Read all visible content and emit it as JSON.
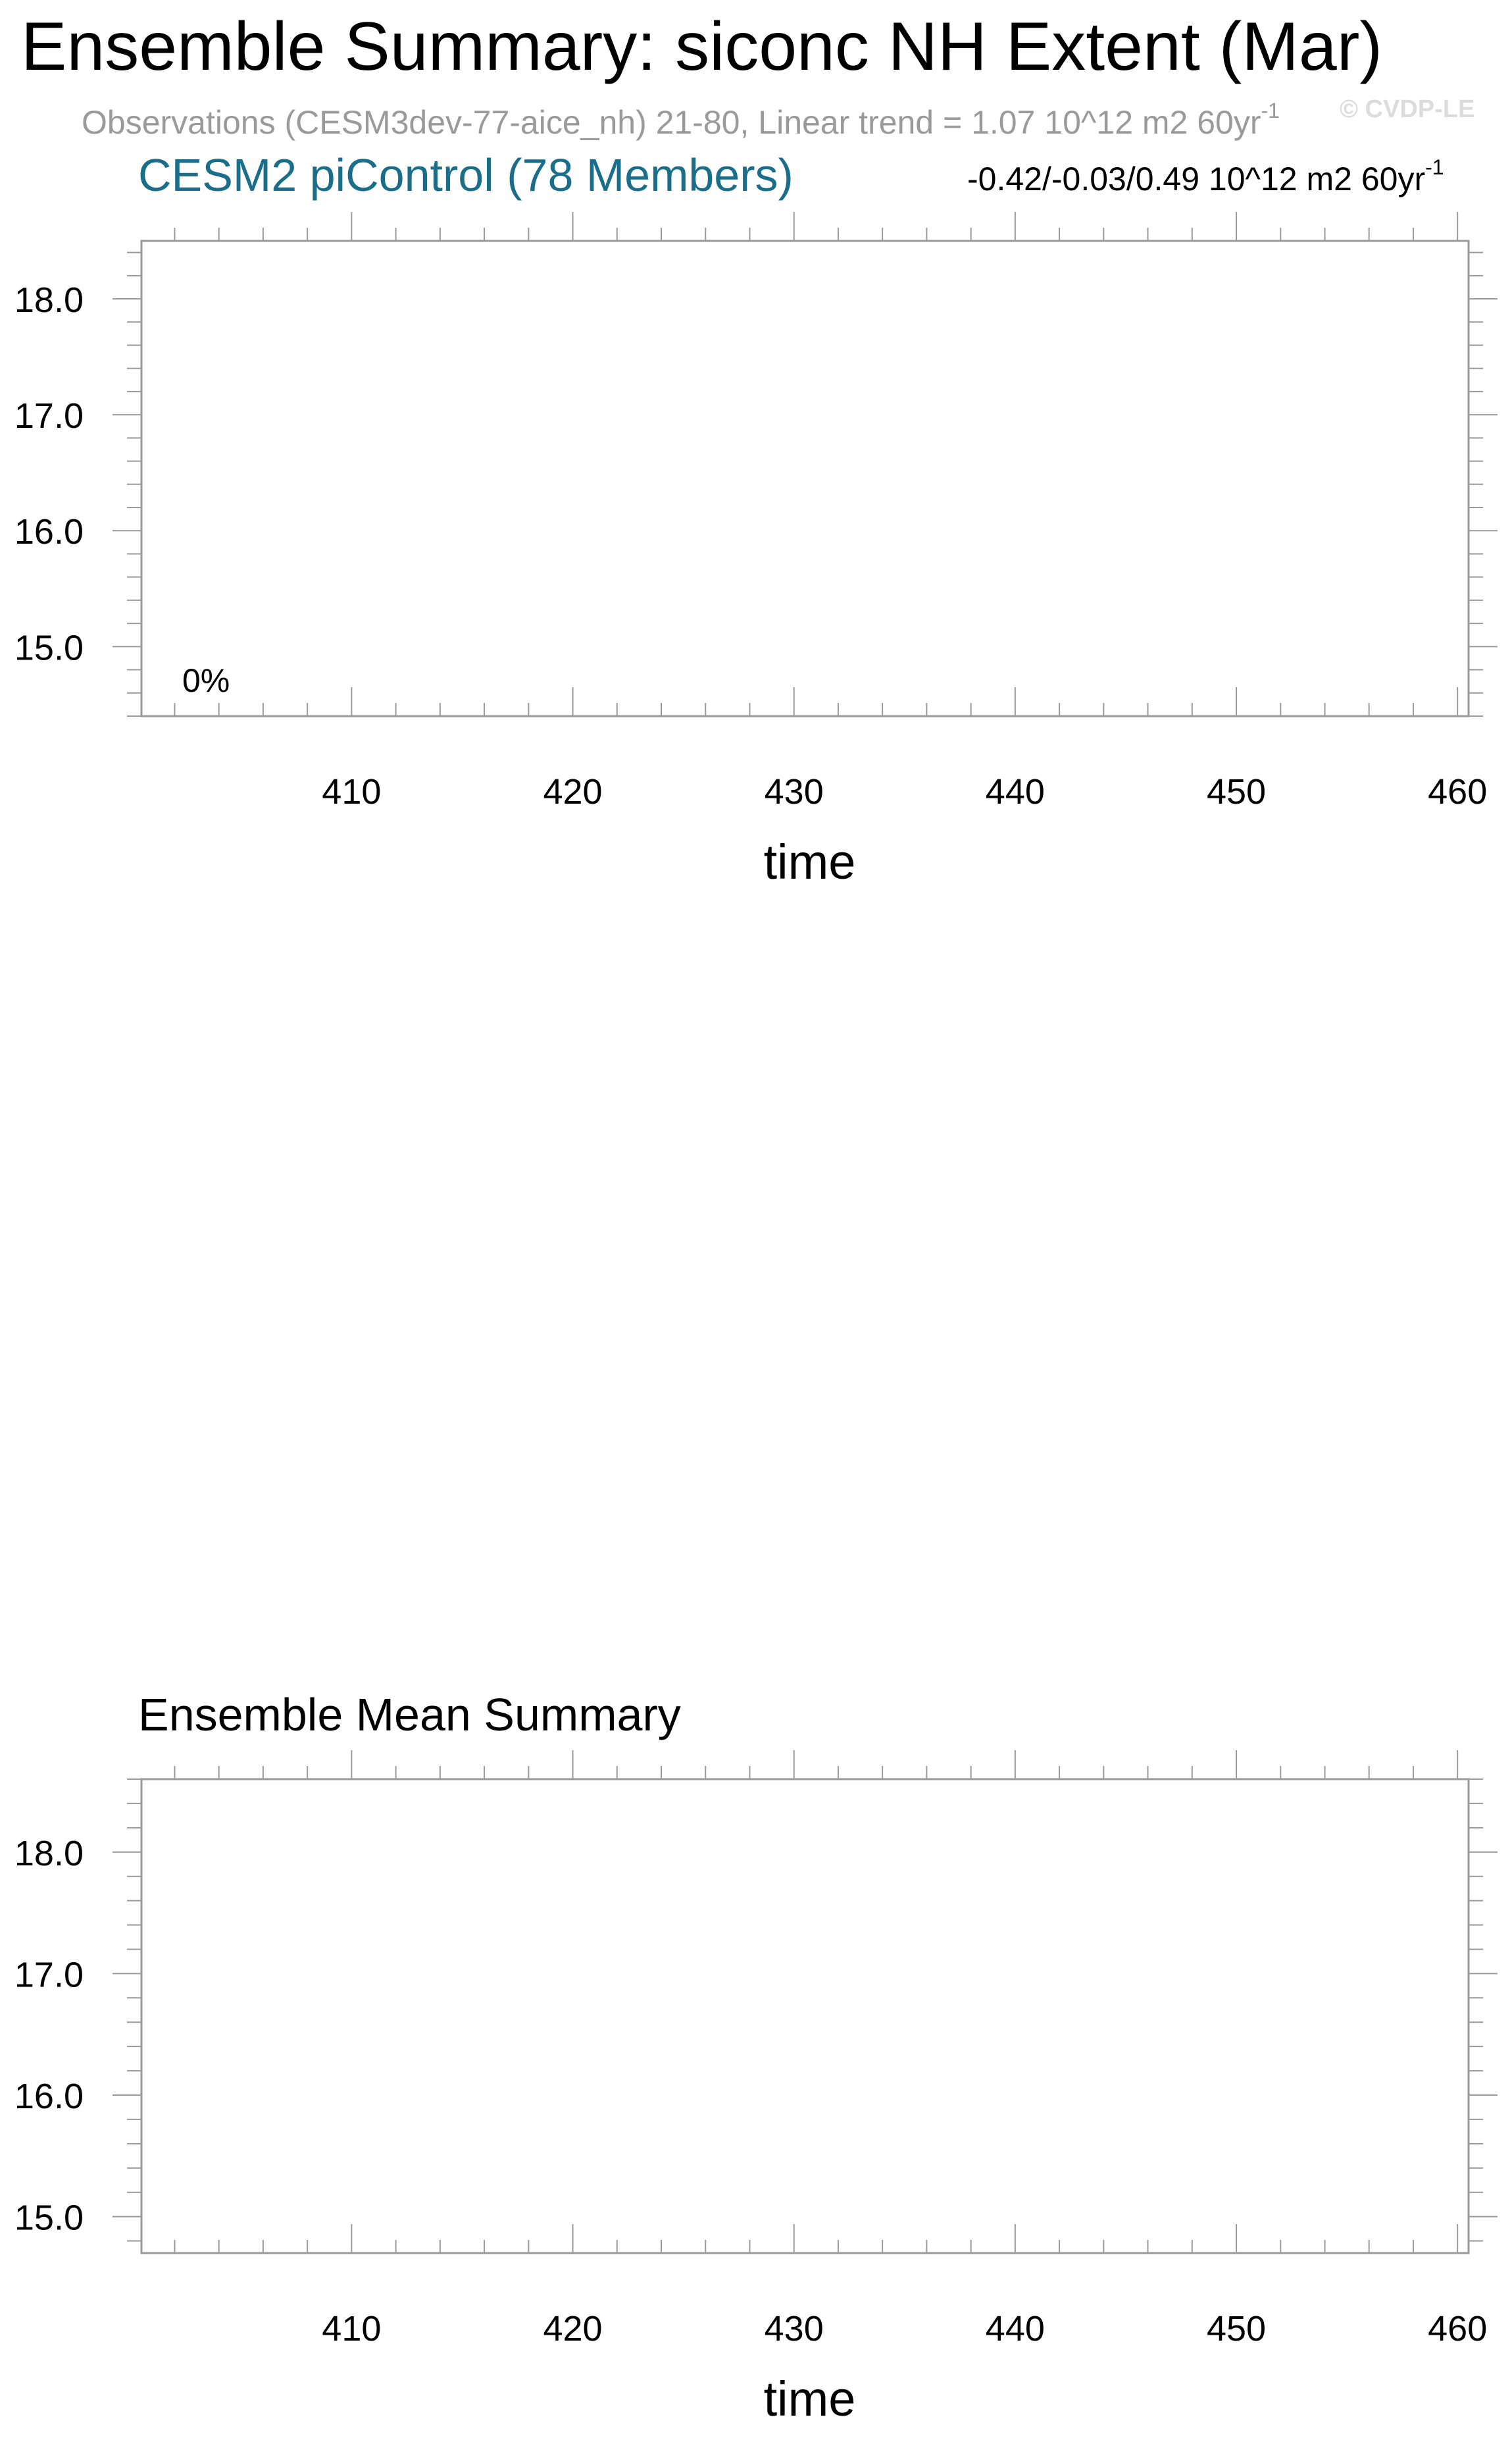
{
  "title": "Ensemble Summary: siconc NH Extent (Mar)",
  "observations": {
    "text": "Observations (CESM3dev-77-aice_nh) 21-80, Linear trend = 1.07 10^12 m2 60yr",
    "superscript": "-1"
  },
  "watermark": "© CVDP-LE",
  "chart_data": [
    {
      "type": "line",
      "title": "CESM2 piControl (78 Members)",
      "stats": {
        "text": "-0.42/-0.03/0.49 10^12 m2 60yr",
        "superscript": "-1"
      },
      "annotation": "0%",
      "xlabel": "time",
      "ylabel": "",
      "xlim": [
        400.5,
        460.5
      ],
      "ylim": [
        14.4,
        18.5
      ],
      "x_ticks": [
        "410",
        "420",
        "430",
        "440",
        "450",
        "460"
      ],
      "y_ticks": [
        "15.0",
        "16.0",
        "17.0",
        "18.0"
      ],
      "series": []
    },
    {
      "type": "line",
      "title": "Ensemble Mean Summary",
      "xlabel": "time",
      "ylabel": "",
      "xlim": [
        400.5,
        460.5
      ],
      "ylim": [
        14.7,
        18.6
      ],
      "x_ticks": [
        "410",
        "420",
        "430",
        "440",
        "450",
        "460"
      ],
      "y_ticks": [
        "15.0",
        "16.0",
        "17.0",
        "18.0"
      ],
      "series": []
    }
  ]
}
